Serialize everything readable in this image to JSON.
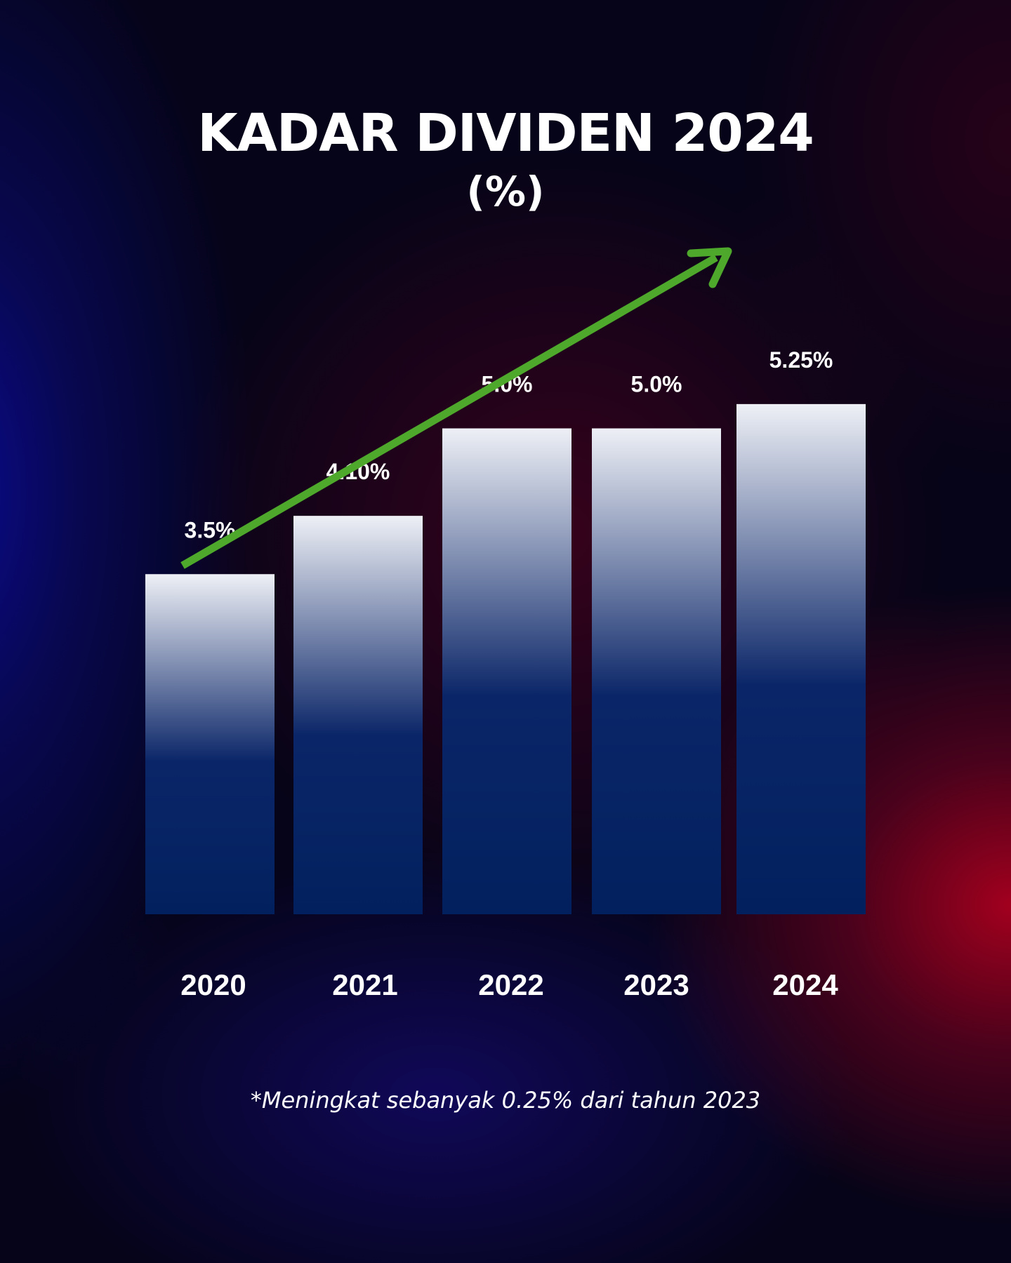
{
  "title": "KADAR DIVIDEN 2024",
  "subtitle": "(%)",
  "footnote": "*Meningkat sebanyak 0.25% dari tahun 2023",
  "colors": {
    "bar_top": "#eef0f6",
    "bar_bottom": "#02205e",
    "arrow": "#4ea82b"
  },
  "chart_data": {
    "type": "bar",
    "categories": [
      "2020",
      "2021",
      "2022",
      "2023",
      "2024"
    ],
    "values": [
      3.5,
      4.1,
      5.0,
      5.0,
      5.25
    ],
    "data_labels": [
      "3.5%",
      "4.10%",
      "5.0%",
      "5.0%",
      "5.25%"
    ],
    "title": "KADAR DIVIDEN 2024",
    "subtitle": "(%)",
    "grid": false,
    "legend": "none",
    "trend_arrow": "up"
  }
}
